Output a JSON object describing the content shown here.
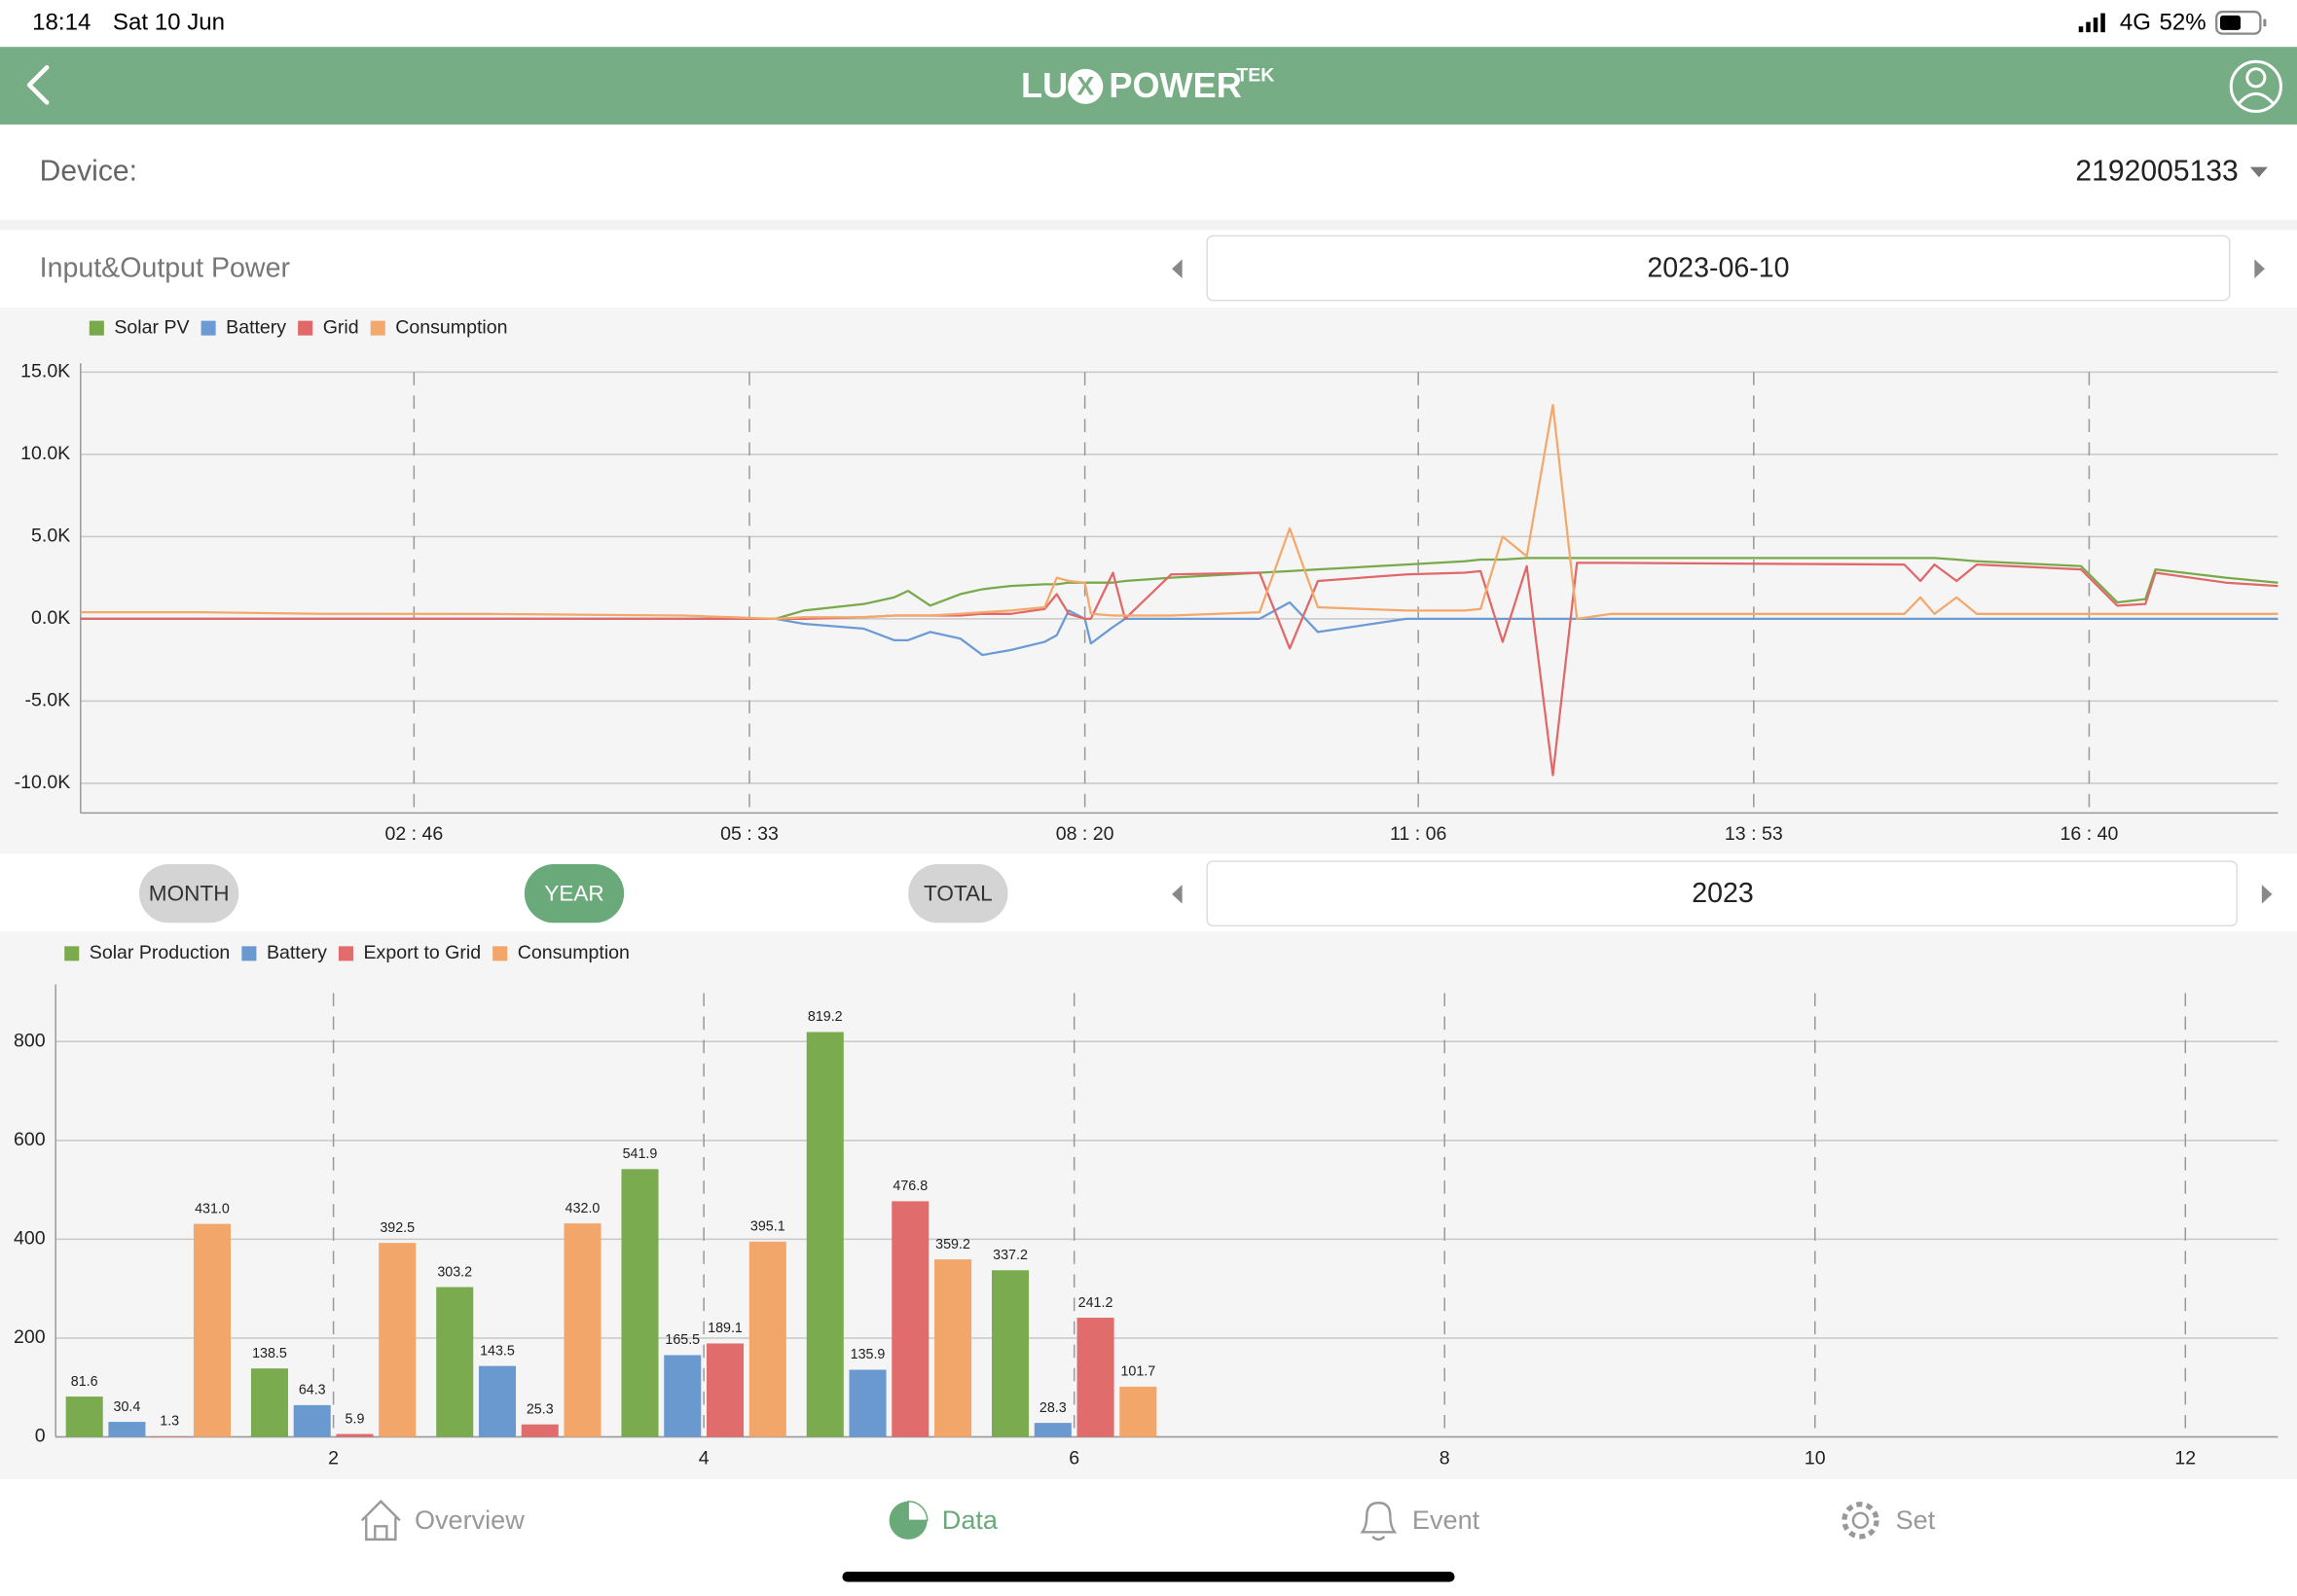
{
  "status_bar": {
    "time": "18:14",
    "date": "Sat 10 Jun",
    "network": "4G",
    "battery": "52%"
  },
  "header": {
    "logo": [
      "LU",
      "X",
      "POWER"
    ],
    "logo_superscript": "TEK"
  },
  "device": {
    "label": "Device:",
    "value": "2192005133"
  },
  "power_section": {
    "title": "Input&Output Power",
    "date": "2023-06-10"
  },
  "period_tabs": {
    "options": [
      "MONTH",
      "YEAR",
      "TOTAL"
    ],
    "active": "YEAR",
    "period": "2023"
  },
  "nav": {
    "items": [
      "Overview",
      "Data",
      "Event",
      "Set"
    ],
    "active": "Data"
  },
  "chart_data": [
    {
      "type": "line",
      "x": [
        0,
        60,
        120,
        200,
        300,
        346,
        360,
        390,
        405,
        412,
        423,
        438,
        449,
        463,
        480,
        486,
        492,
        500,
        503,
        514,
        520,
        543,
        587,
        602,
        616,
        660,
        689,
        697,
        708,
        720,
        733,
        745,
        762,
        908,
        916,
        923,
        934,
        944,
        996,
        1014,
        1028,
        1033,
        1068,
        1094
      ],
      "xlim": [
        0,
        1094
      ],
      "xticks": [
        {
          "value": 166,
          "label": "02 : 46"
        },
        {
          "value": 333,
          "label": "05 : 33"
        },
        {
          "value": 500,
          "label": "08 : 20"
        },
        {
          "value": 666,
          "label": "11 : 06"
        },
        {
          "value": 833,
          "label": "13 : 53"
        },
        {
          "value": 1000,
          "label": "16 : 40"
        }
      ],
      "ylim": [
        -11800,
        15000
      ],
      "yticks": [
        {
          "value": -10000,
          "label": "-10.0K"
        },
        {
          "value": -5000,
          "label": "-5.0K"
        },
        {
          "value": 0,
          "label": "0.0K"
        },
        {
          "value": 5000,
          "label": "5.0K"
        },
        {
          "value": 10000,
          "label": "10.0K"
        },
        {
          "value": 15000,
          "label": "15.0K"
        }
      ],
      "grid": true,
      "series": [
        {
          "name": "Solar PV",
          "color": "#78a94b",
          "values": [
            0,
            0,
            0,
            0,
            0,
            0,
            500,
            900,
            1300,
            1700,
            800,
            1500,
            1800,
            2000,
            2100,
            2100,
            2200,
            2200,
            2200,
            2200,
            2300,
            2500,
            2800,
            2900,
            3000,
            3300,
            3500,
            3600,
            3600,
            3700,
            3700,
            3700,
            3700,
            3700,
            3700,
            3700,
            3600,
            3500,
            3200,
            1000,
            1200,
            3000,
            2500,
            2200
          ]
        },
        {
          "name": "Battery",
          "color": "#6b9bd4",
          "values": [
            0,
            0,
            0,
            0,
            0,
            0,
            -300,
            -600,
            -1300,
            -1300,
            -800,
            -1200,
            -2200,
            -1900,
            -1400,
            -1000,
            500,
            0,
            -1500,
            -500,
            0,
            0,
            0,
            1000,
            -800,
            0,
            0,
            0,
            0,
            0,
            0,
            0,
            0,
            0,
            0,
            0,
            0,
            0,
            0,
            0,
            0,
            0,
            0,
            0
          ]
        },
        {
          "name": "Grid",
          "color": "#e06868",
          "values": [
            0,
            0,
            0,
            0,
            0,
            0,
            0,
            100,
            200,
            200,
            200,
            200,
            300,
            300,
            600,
            1500,
            300,
            0,
            0,
            2800,
            0,
            2700,
            2800,
            -1800,
            2300,
            2700,
            2800,
            2900,
            -1400,
            3200,
            -9500,
            3400,
            3400,
            3300,
            2300,
            3300,
            2300,
            3300,
            3000,
            800,
            900,
            2800,
            2200,
            2000
          ]
        },
        {
          "name": "Consumption",
          "color": "#f3a86c",
          "values": [
            400,
            400,
            300,
            300,
            200,
            0,
            100,
            100,
            200,
            200,
            200,
            300,
            400,
            500,
            700,
            2500,
            2300,
            2200,
            300,
            200,
            200,
            200,
            400,
            5500,
            700,
            500,
            500,
            600,
            5000,
            3800,
            13000,
            0,
            300,
            300,
            1300,
            300,
            1300,
            300,
            300,
            300,
            300,
            300,
            300,
            300
          ]
        }
      ]
    },
    {
      "type": "bar",
      "x": [
        1,
        2,
        3,
        4,
        5,
        6
      ],
      "xlim": [
        0.5,
        12.5
      ],
      "xticks": [
        2,
        4,
        6,
        8,
        10,
        12
      ],
      "ylim": [
        0,
        898
      ],
      "yticks": [
        0,
        200,
        400,
        600,
        800
      ],
      "grid": true,
      "series": [
        {
          "name": "Solar Production",
          "color": "#7bab4f",
          "values": [
            81.6,
            138.5,
            303.2,
            541.9,
            819.2,
            337.2
          ],
          "value_labels": [
            "81.6",
            "138.5",
            "303.2",
            "541.9",
            "819.2",
            "337.2"
          ]
        },
        {
          "name": "Battery",
          "color": "#6a99d0",
          "values": [
            30.4,
            64.3,
            143.5,
            165.5,
            135.9,
            28.3
          ],
          "value_labels": [
            "30.4",
            "64.3",
            "143.5",
            "165.5",
            "135.9",
            "28.3"
          ]
        },
        {
          "name": "Export to Grid",
          "color": "#e06c6c",
          "values": [
            1.3,
            5.9,
            25.3,
            189.1,
            476.8,
            241.2
          ],
          "value_labels": [
            "1.3",
            "5.9",
            "25.3",
            "189.1",
            "476.8",
            "241.2"
          ]
        },
        {
          "name": "Consumption",
          "color": "#f2a66a",
          "values": [
            431.0,
            392.5,
            432.0,
            395.1,
            359.2,
            101.7
          ],
          "value_labels": [
            "431.0",
            "392.5",
            "432.0",
            "395.1",
            "359.2",
            "101.7"
          ]
        }
      ]
    }
  ]
}
